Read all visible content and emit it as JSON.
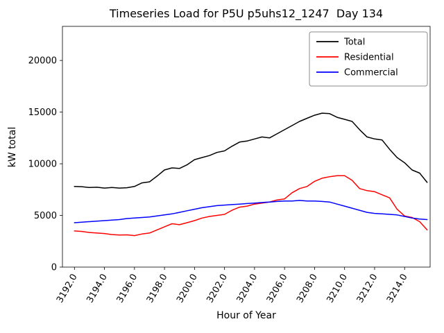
{
  "chart_data": {
    "type": "line",
    "title": "Timeseries Load for P5U p5uhs12_1247  Day 134",
    "xlabel": "Hour of Year",
    "ylabel": "kW total",
    "grid": false,
    "legend_position": "upper right",
    "xlim": [
      3191.2,
      3215.7
    ],
    "ylim": [
      0,
      23300
    ],
    "x_ticks": [
      3192,
      3194,
      3196,
      3198,
      3200,
      3202,
      3204,
      3206,
      3208,
      3210,
      3212,
      3214
    ],
    "x_tick_labels": [
      "3192.0",
      "3194.0",
      "3196.0",
      "3198.0",
      "3200.0",
      "3202.0",
      "3204.0",
      "3206.0",
      "3208.0",
      "3210.0",
      "3212.0",
      "3214.0"
    ],
    "y_ticks": [
      0,
      5000,
      10000,
      15000,
      20000
    ],
    "y_tick_labels": [
      "0",
      "5000",
      "10000",
      "15000",
      "20000"
    ],
    "x": [
      3192.0,
      3192.5,
      3193.0,
      3193.5,
      3194.0,
      3194.5,
      3195.0,
      3195.5,
      3196.0,
      3196.5,
      3197.0,
      3197.5,
      3198.0,
      3198.5,
      3199.0,
      3199.5,
      3200.0,
      3200.5,
      3201.0,
      3201.5,
      3202.0,
      3202.5,
      3203.0,
      3203.5,
      3204.0,
      3204.5,
      3205.0,
      3205.5,
      3206.0,
      3206.5,
      3207.0,
      3207.5,
      3208.0,
      3208.5,
      3209.0,
      3209.5,
      3210.0,
      3210.5,
      3211.0,
      3211.5,
      3212.0,
      3212.5,
      3213.0,
      3213.5,
      3214.0,
      3214.5,
      3215.0,
      3215.5
    ],
    "series": [
      {
        "name": "Total",
        "color": "#000000",
        "values": [
          7800,
          7780,
          7700,
          7730,
          7650,
          7700,
          7650,
          7680,
          7800,
          8150,
          8250,
          8800,
          9400,
          9600,
          9550,
          9900,
          10400,
          10600,
          10800,
          11100,
          11250,
          11700,
          12100,
          12200,
          12400,
          12600,
          12500,
          12900,
          13300,
          13700,
          14100,
          14400,
          14700,
          14900,
          14850,
          14500,
          14300,
          14100,
          13300,
          12600,
          12400,
          12300,
          11400,
          10600,
          10100,
          9400,
          9100,
          8200
        ]
      },
      {
        "name": "Residential",
        "color": "#ff0000",
        "values": [
          3500,
          3450,
          3350,
          3300,
          3250,
          3150,
          3100,
          3120,
          3050,
          3200,
          3300,
          3600,
          3900,
          4200,
          4100,
          4300,
          4500,
          4750,
          4900,
          5000,
          5100,
          5500,
          5800,
          5900,
          6100,
          6200,
          6300,
          6500,
          6600,
          7200,
          7600,
          7800,
          8300,
          8600,
          8750,
          8850,
          8850,
          8400,
          7600,
          7400,
          7300,
          7000,
          6700,
          5600,
          4950,
          4800,
          4400,
          3600
        ]
      },
      {
        "name": "Commercial",
        "color": "#0000ff",
        "values": [
          4300,
          4350,
          4400,
          4450,
          4500,
          4550,
          4600,
          4700,
          4750,
          4800,
          4850,
          4950,
          5050,
          5150,
          5300,
          5450,
          5600,
          5750,
          5850,
          5950,
          6000,
          6050,
          6100,
          6150,
          6200,
          6250,
          6300,
          6350,
          6400,
          6400,
          6450,
          6400,
          6400,
          6350,
          6300,
          6100,
          5900,
          5700,
          5500,
          5300,
          5200,
          5150,
          5100,
          5050,
          4900,
          4750,
          4650,
          4600
        ]
      }
    ]
  }
}
